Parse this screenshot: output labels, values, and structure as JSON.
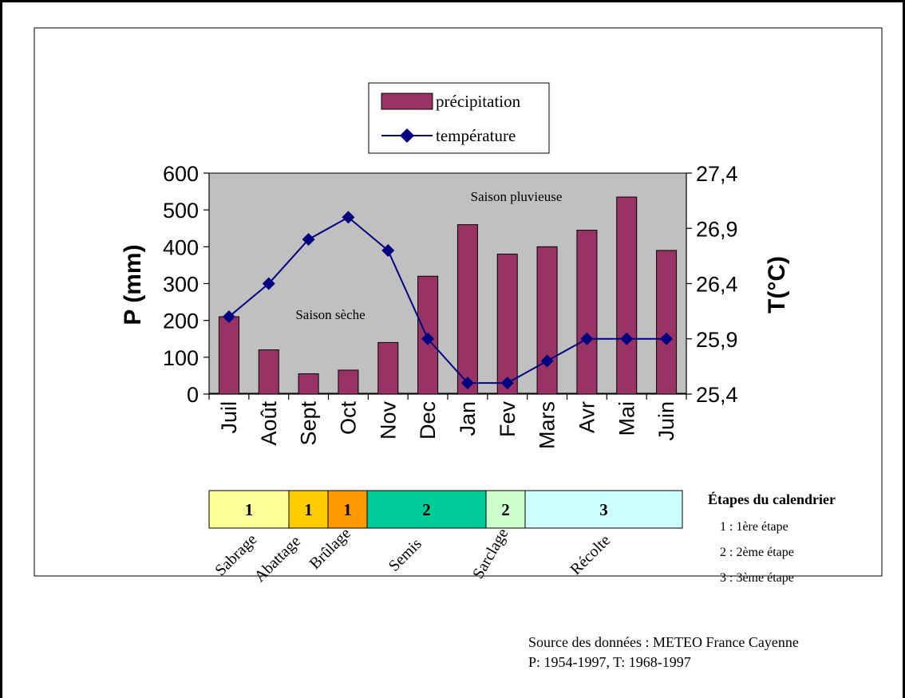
{
  "chart_data": {
    "type": "bar",
    "categories": [
      "Juil",
      "Août",
      "Sept",
      "Oct",
      "Nov",
      "Dec",
      "Jan",
      "Fev",
      "Mars",
      "Avr",
      "Mai",
      "Juin"
    ],
    "series": [
      {
        "name": "précipitation",
        "type": "bar",
        "axis": "left",
        "values": [
          210,
          120,
          55,
          65,
          140,
          320,
          460,
          380,
          400,
          445,
          535,
          390
        ]
      },
      {
        "name": "température",
        "type": "line",
        "axis": "right",
        "values": [
          26.1,
          26.4,
          26.8,
          27.0,
          26.7,
          25.9,
          25.5,
          25.5,
          25.7,
          25.9,
          25.9,
          25.9
        ]
      }
    ],
    "ylabel": "P (mm)",
    "y2label": "T(°C)",
    "ylim": [
      0,
      600
    ],
    "y2lim": [
      25.4,
      27.4
    ],
    "yticks": [
      "0",
      "100",
      "200",
      "300",
      "400",
      "500",
      "600"
    ],
    "y2ticks": [
      "25,4",
      "25,9",
      "26,4",
      "26,9",
      "27,4"
    ],
    "legend_position": "top-center",
    "annotations": [
      "Saison pluvieuse",
      "Saison sèche"
    ],
    "grid": false
  },
  "colors": {
    "bar": "#993366",
    "line": "#000080",
    "plot_bg": "#c0c0c0",
    "seg_sabrage": "#ffff99",
    "seg_abattage": "#ffcc00",
    "seg_brulage": "#ff9900",
    "seg_semis": "#00cc99",
    "seg_sarclage": "#ccffcc",
    "seg_recolte": "#ccffff"
  },
  "calendar": {
    "segments": [
      {
        "num": "1",
        "label": "Sabrage",
        "color": "#ffff99"
      },
      {
        "num": "1",
        "label": "Abattage",
        "color": "#ffcc00"
      },
      {
        "num": "1",
        "label": "Brûlage",
        "color": "#ff9900"
      },
      {
        "num": "2",
        "label": "Semis",
        "color": "#00cc99"
      },
      {
        "num": "2",
        "label": "Sarclage",
        "color": "#ccffcc"
      },
      {
        "num": "3",
        "label": "Récolte",
        "color": "#ccffff"
      }
    ],
    "legend_title": "Étapes du calendrier",
    "legend_items": [
      "1 : 1ère étape",
      "2 : 2ème étape",
      "3 : 3ème étape"
    ]
  },
  "source": {
    "line1": "Source des données : METEO France Cayenne",
    "line2": "P: 1954-1997, T: 1968-1997"
  }
}
